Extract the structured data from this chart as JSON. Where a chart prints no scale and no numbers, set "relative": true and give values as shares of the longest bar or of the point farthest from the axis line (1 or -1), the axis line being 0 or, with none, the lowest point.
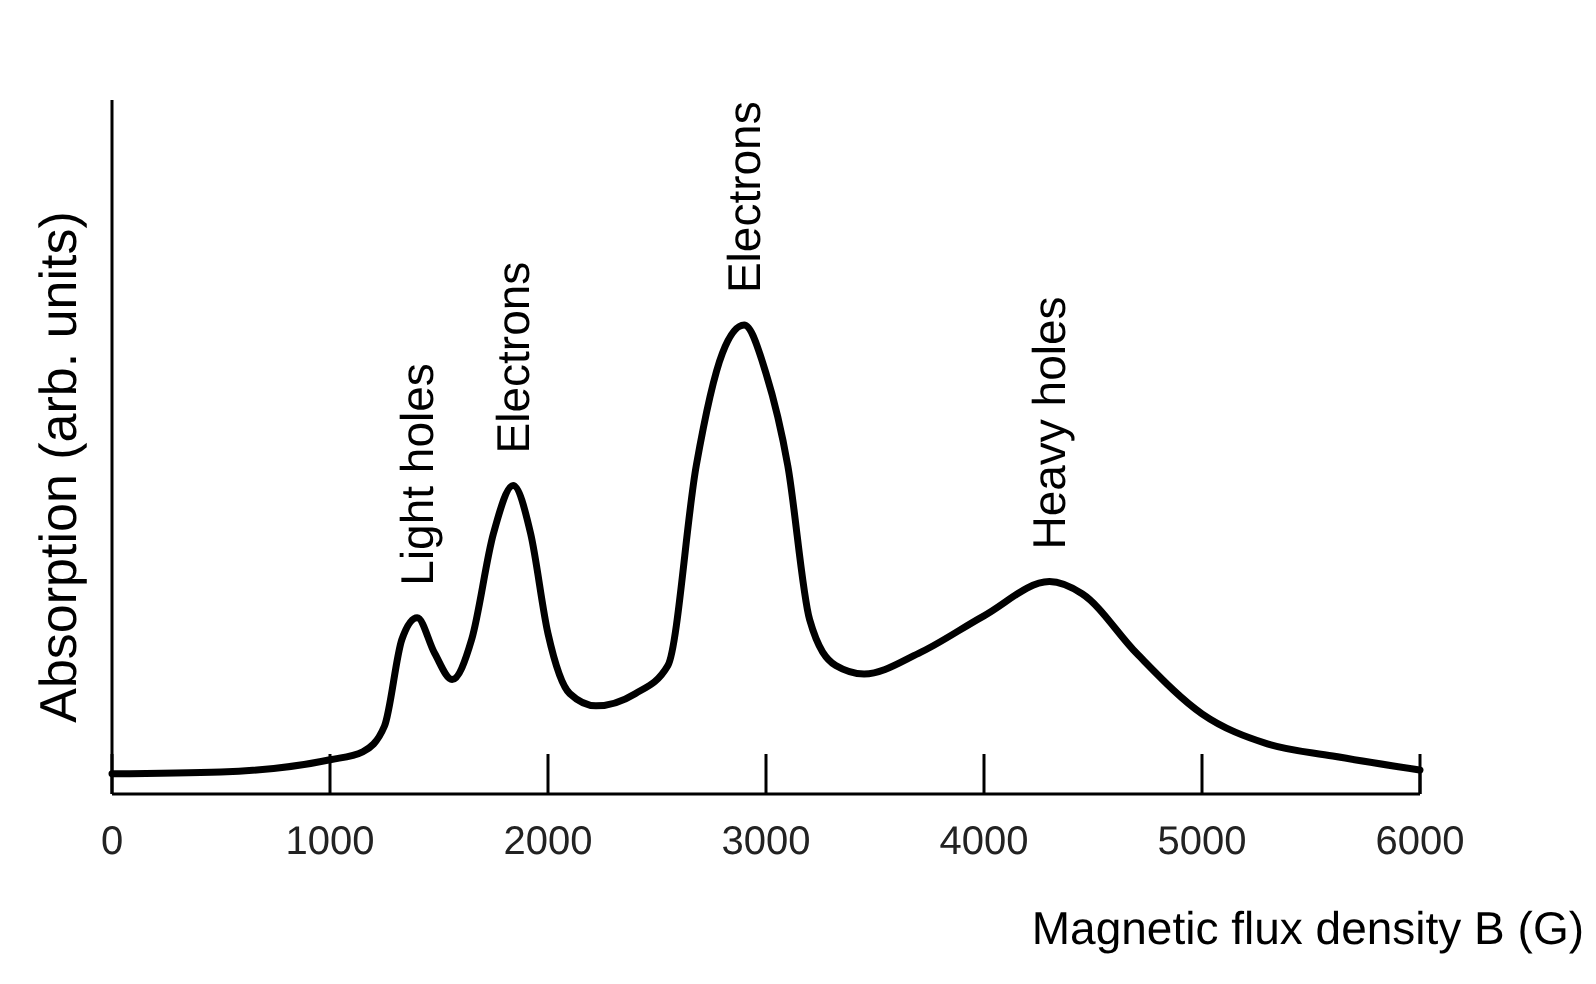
{
  "chart_data": {
    "type": "line",
    "relative": true,
    "xlabel": "Magnetic flux density B (G)",
    "ylabel": "Absorption (arb. units)",
    "xlim": [
      0,
      6000
    ],
    "xticks": [
      0,
      1000,
      2000,
      3000,
      4000,
      5000,
      6000
    ],
    "marker": "none",
    "line_style": "solid",
    "series": [
      {
        "color": "#000000",
        "x": [
          0,
          500,
          1000,
          1150,
          1250,
          1330,
          1400,
          1480,
          1560,
          1650,
          1750,
          1840,
          1920,
          2000,
          2100,
          2220,
          2400,
          2550,
          2680,
          2800,
          2900,
          3000,
          3100,
          3200,
          3320,
          3450,
          3700,
          4000,
          4300,
          4450,
          4700,
          5000,
          5300,
          5600,
          6000
        ],
        "values": [
          0.043,
          0.047,
          0.073,
          0.09,
          0.145,
          0.33,
          0.376,
          0.3,
          0.244,
          0.33,
          0.556,
          0.658,
          0.556,
          0.342,
          0.214,
          0.188,
          0.214,
          0.274,
          0.7,
          0.94,
          1,
          0.897,
          0.7,
          0.372,
          0.274,
          0.256,
          0.3,
          0.38,
          0.453,
          0.427,
          0.3,
          0.171,
          0.107,
          0.081,
          0.051
        ]
      }
    ],
    "annotations": [
      {
        "text": "Light holes",
        "x": 1400,
        "y": 0.376
      },
      {
        "text": "Electrons",
        "x": 1840,
        "y": 0.658
      },
      {
        "text": "Electrons",
        "x": 2900,
        "y": 1
      },
      {
        "text": "Heavy holes",
        "x": 4300,
        "y": 0.453
      }
    ]
  }
}
